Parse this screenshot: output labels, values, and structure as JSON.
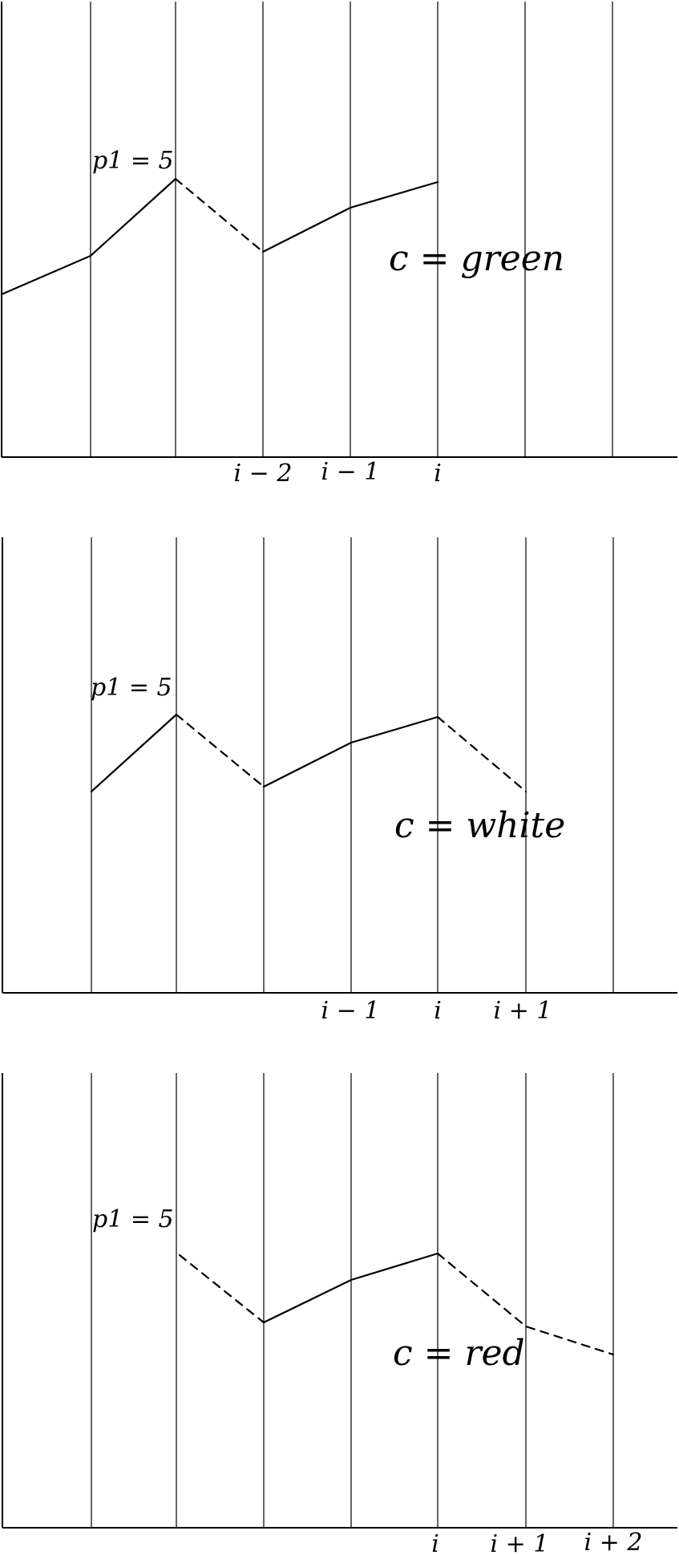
{
  "panels": [
    {
      "p1_label": "p1 = 5",
      "c_label": "c = green",
      "ticks": [
        "i − 2",
        "i − 1",
        "i"
      ]
    },
    {
      "p1_label": "p1 = 5",
      "c_label": "c = white",
      "ticks": [
        "i − 1",
        "i",
        "i + 1"
      ]
    },
    {
      "p1_label": "p1 = 5",
      "c_label": "c = red",
      "ticks": [
        "i",
        "i + 1",
        "i + 2"
      ]
    }
  ]
}
